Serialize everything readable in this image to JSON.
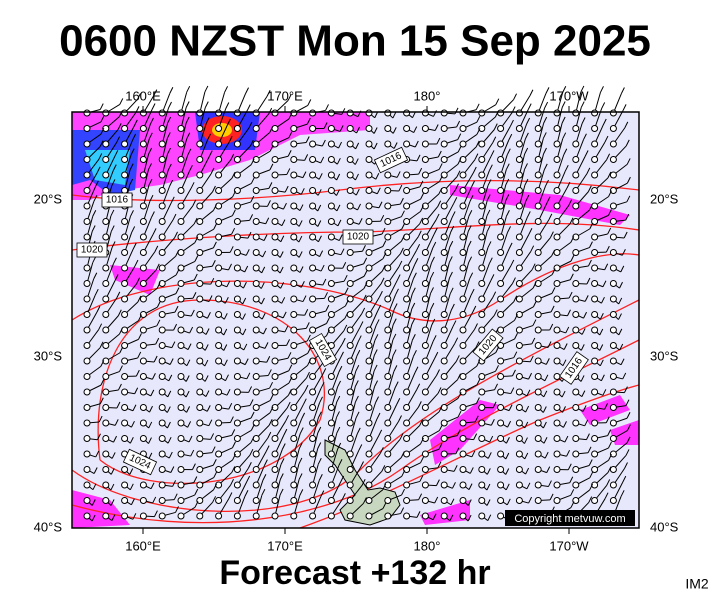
{
  "header": {
    "title": "0600 NZST Mon 15 Sep 2025"
  },
  "map": {
    "top_axis_labels": [
      "160°E",
      "170°E",
      "180°",
      "170°W"
    ],
    "bottom_axis_labels": [
      "160°E",
      "170°E",
      "180°",
      "170°W"
    ],
    "left_axis_labels": [
      "20°S",
      "30°S",
      "40°S"
    ],
    "right_axis_labels": [
      "20°S",
      "30°S",
      "40°S"
    ],
    "isobar_labels": [
      "1016",
      "1016",
      "1020",
      "1020",
      "1024",
      "1020",
      "1016",
      "1024"
    ],
    "copyright": "Copyright metvuw.com"
  },
  "footer": {
    "forecast": "Forecast +132 hr",
    "image_id": "IM2"
  }
}
